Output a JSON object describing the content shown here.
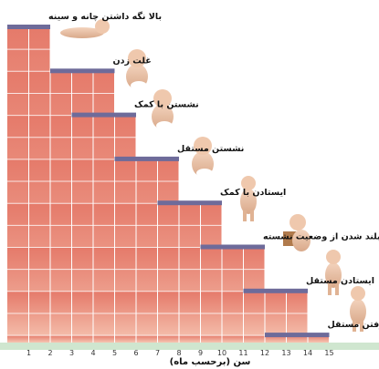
{
  "chart_data": {
    "type": "bar",
    "orientation": "horizontal",
    "description_style": "developmental milestone age ranges",
    "xlabel": "سن (برحسب ماه)",
    "x_ticks": [
      "1",
      "2",
      "3",
      "4",
      "5",
      "6",
      "7",
      "8",
      "9",
      "10",
      "11",
      "12",
      "13",
      "14",
      "15"
    ],
    "xlim": [
      0,
      15
    ],
    "grid": true,
    "milestones": [
      {
        "label": "بالا نگه داشتن چانه و سینه",
        "start": 0,
        "end": 2
      },
      {
        "label": "غلت زدن",
        "start": 2,
        "end": 5
      },
      {
        "label": "نشستن با کمک",
        "start": 3,
        "end": 6
      },
      {
        "label": "نشستن مستقل",
        "start": 5,
        "end": 8
      },
      {
        "label": "ایستادن با کمک",
        "start": 7,
        "end": 10
      },
      {
        "label": "بلند شدن از وضعیت نشسته",
        "start": 9,
        "end": 12
      },
      {
        "label": "ایستادن مستقل",
        "start": 11,
        "end": 14
      },
      {
        "label": "راه رفتن مستقل",
        "start": 12,
        "end": 15
      }
    ],
    "colors": {
      "bar_top": "#e57a6a",
      "bar_bottom": "#f6c6b3",
      "range_marker": "#6e6b9a",
      "axis_band": "#cfe6cf",
      "grid": "#ffffff"
    }
  }
}
